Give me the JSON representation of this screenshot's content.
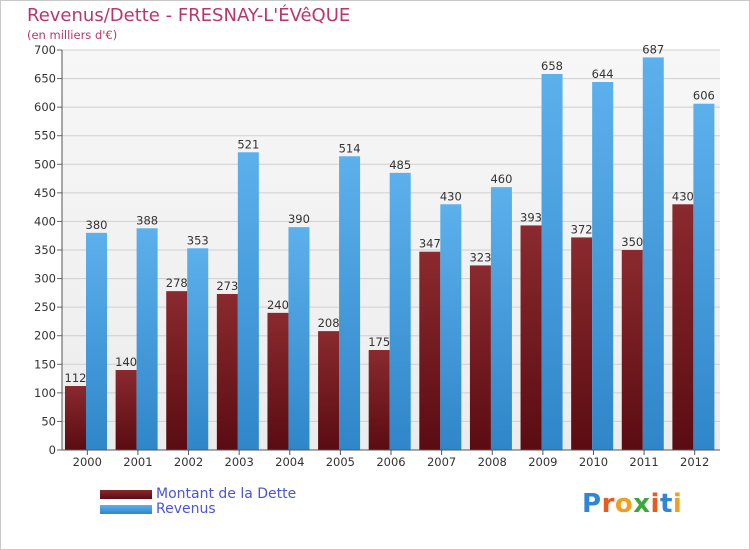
{
  "title": "Revenus/Dette - FRESNAY-L'ÉVêQUE",
  "subtitle": "(en milliers d'€)",
  "logo": "Proxiti",
  "colors": {
    "debt_top": "#8a2a2e",
    "debt_bottom": "#5a0c12",
    "revenue_top": "#5cb0ec",
    "revenue_bottom": "#2f86c8",
    "title": "#b8366d",
    "legend_text": "#4a55d6"
  },
  "chart_data": {
    "type": "bar",
    "title": "Revenus/Dette - FRESNAY-L'ÉVêQUE",
    "ylabel": "(en milliers d'€)",
    "xlabel": "",
    "ylim": [
      0,
      700
    ],
    "yticks": [
      "0",
      "50",
      "100",
      "150",
      "200",
      "250",
      "300",
      "350",
      "400",
      "450",
      "500",
      "550",
      "600",
      "650",
      "700"
    ],
    "grid": true,
    "legend_position": "bottom-left",
    "categories": [
      "2000",
      "2001",
      "2002",
      "2003",
      "2004",
      "2005",
      "2006",
      "2007",
      "2008",
      "2009",
      "2010",
      "2011",
      "2012"
    ],
    "series": [
      {
        "name": "Montant de la Dette",
        "values": [
          112,
          140,
          278,
          273,
          240,
          208,
          175,
          347,
          323,
          393,
          372,
          350,
          430
        ]
      },
      {
        "name": "Revenus",
        "values": [
          380,
          388,
          353,
          521,
          390,
          514,
          485,
          430,
          460,
          658,
          644,
          687,
          606
        ]
      }
    ]
  }
}
